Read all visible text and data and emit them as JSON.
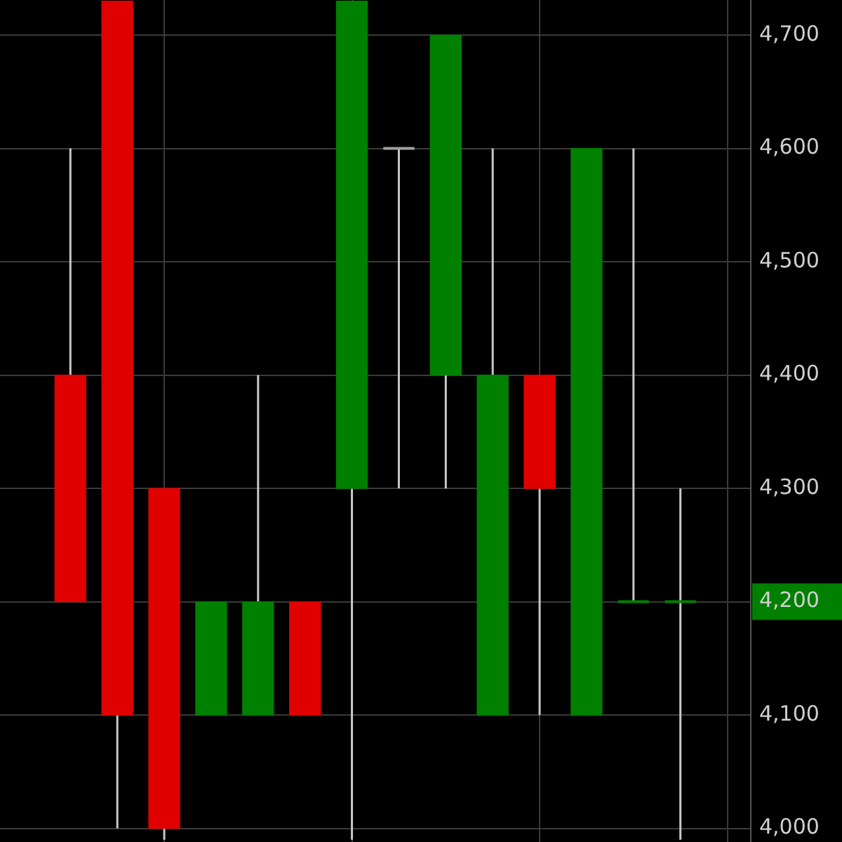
{
  "chart_data": {
    "type": "candlestick",
    "categories": [
      null,
      null,
      null,
      null,
      null,
      null,
      null,
      null,
      null,
      null,
      null,
      null,
      null,
      null,
      null,
      null
    ],
    "ohlc": [
      null,
      [
        4400,
        4600,
        4200,
        4200
      ],
      [
        4730,
        4730,
        4000,
        4100
      ],
      [
        4300,
        4300,
        3990,
        4000
      ],
      [
        4100,
        4200,
        4100,
        4200
      ],
      [
        4100,
        4400,
        4100,
        4200
      ],
      [
        4200,
        4200,
        4100,
        4100
      ],
      [
        4300,
        4730,
        3990,
        4730
      ],
      [
        4600,
        4600,
        4300,
        4600
      ],
      [
        4400,
        4700,
        4300,
        4700
      ],
      [
        4100,
        4600,
        4100,
        4400
      ],
      [
        4400,
        4400,
        4100,
        4300
      ],
      [
        4100,
        4600,
        4100,
        4600
      ],
      [
        4200,
        4600,
        4200,
        4200
      ],
      [
        4200,
        4300,
        3990,
        4200
      ],
      null
    ],
    "colors": [
      null,
      "#e00000",
      "#e00000",
      "#e00000",
      "#008000",
      "#008000",
      "#e00000",
      "#008000",
      "#a0a0a0",
      "#008000",
      "#008000",
      "#e00000",
      "#008000",
      "#008000",
      "#008000",
      null
    ],
    "ylim": [
      3988,
      4731
    ],
    "yticks": [
      {
        "value": 4000,
        "label": "4,000"
      },
      {
        "value": 4100,
        "label": "4,100"
      },
      {
        "value": 4200,
        "label": "4,200"
      },
      {
        "value": 4300,
        "label": "4,300"
      },
      {
        "value": 4400,
        "label": "4,400"
      },
      {
        "value": 4500,
        "label": "4,500"
      },
      {
        "value": 4600,
        "label": "4,600"
      },
      {
        "value": 4700,
        "label": "4,700"
      }
    ],
    "grid": true,
    "tick_labels": "y"
  }
}
